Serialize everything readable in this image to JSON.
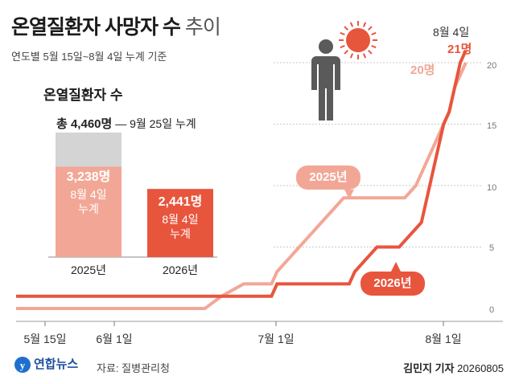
{
  "header": {
    "title_main": "온열질환자 사망자 수",
    "title_light": "추이",
    "subtitle": "연도별 5월 15일~8월 4일 누계 기준"
  },
  "bar_panel": {
    "title": "온열질환자 수",
    "total_label": "총 4,460명",
    "total_note": "— 9월 25일 누계",
    "bars": [
      {
        "year": "2025년",
        "value_label": "3,238명",
        "line1": "8월 4일",
        "line2": "누계"
      },
      {
        "year": "2026년",
        "value_label": "2,441명",
        "line1": "8월 4일",
        "line2": "누계"
      }
    ]
  },
  "line_labels": {
    "tag_2025": "2025년",
    "tag_2026": "2026년",
    "end_date": "8월 4일",
    "end_2026": "21명",
    "end_2025": "20명"
  },
  "footer": {
    "logo": "연합뉴스",
    "source": "자료: 질병관리청",
    "reporter": "김민지 기자",
    "date_code": "20260805"
  },
  "colors": {
    "y2025": "#f2a796",
    "y2026": "#e8553d",
    "total_bar": "#d4d4d4",
    "grid": "#c9c9c9"
  },
  "chart_data": [
    {
      "type": "bar",
      "title": "온열질환자 수",
      "categories": [
        "2025년",
        "2026년"
      ],
      "series": [
        {
          "name": "8월 4일 누계",
          "values": [
            3238,
            2441
          ]
        },
        {
          "name": "9월 25일 누계",
          "values": [
            4460,
            null
          ]
        }
      ]
    },
    {
      "type": "line",
      "x_ticks": [
        "5월 15일",
        "6월 1일",
        "7월 1일",
        "8월 1일"
      ],
      "y_ticks": [
        0,
        5,
        10,
        15,
        20
      ],
      "ylim": [
        0,
        22
      ],
      "series": [
        {
          "name": "2025년",
          "points": [
            [
              "2025-05-15",
              0
            ],
            [
              "2025-06-18",
              0
            ],
            [
              "2025-06-21",
              1
            ],
            [
              "2025-06-25",
              2
            ],
            [
              "2025-06-30",
              2
            ],
            [
              "2025-07-01",
              3
            ],
            [
              "2025-07-03",
              4
            ],
            [
              "2025-07-05",
              5
            ],
            [
              "2025-07-07",
              6
            ],
            [
              "2025-07-09",
              7
            ],
            [
              "2025-07-11",
              8
            ],
            [
              "2025-07-13",
              9
            ],
            [
              "2025-07-24",
              9
            ],
            [
              "2025-07-26",
              10
            ],
            [
              "2025-07-28",
              12
            ],
            [
              "2025-07-30",
              14
            ],
            [
              "2025-08-01",
              16
            ],
            [
              "2025-08-02",
              18
            ],
            [
              "2025-08-03",
              19
            ],
            [
              "2025-08-04",
              20
            ]
          ]
        },
        {
          "name": "2026년",
          "points": [
            [
              "2026-05-15",
              1
            ],
            [
              "2026-06-30",
              1
            ],
            [
              "2026-07-01",
              2
            ],
            [
              "2026-07-14",
              2
            ],
            [
              "2026-07-15",
              3
            ],
            [
              "2026-07-17",
              4
            ],
            [
              "2026-07-19",
              5
            ],
            [
              "2026-07-23",
              5
            ],
            [
              "2026-07-25",
              6
            ],
            [
              "2026-07-27",
              7
            ],
            [
              "2026-07-28",
              9
            ],
            [
              "2026-07-29",
              11
            ],
            [
              "2026-07-30",
              13
            ],
            [
              "2026-07-31",
              15
            ],
            [
              "2026-08-01",
              16
            ],
            [
              "2026-08-02",
              18
            ],
            [
              "2026-08-03",
              20
            ],
            [
              "2026-08-04",
              21
            ]
          ]
        }
      ]
    }
  ]
}
